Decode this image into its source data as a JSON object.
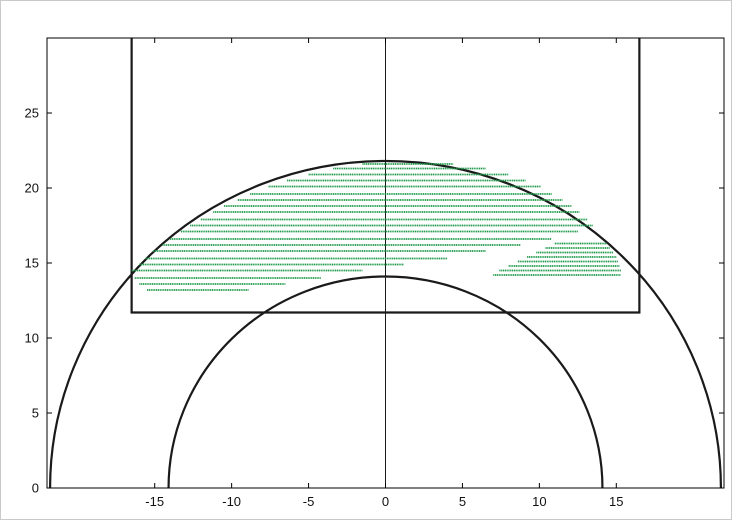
{
  "chart_data": {
    "type": "line",
    "title": "",
    "xlabel": "",
    "ylabel": "",
    "xlim": [
      -22,
      22
    ],
    "ylim": [
      0,
      30
    ],
    "grid": false,
    "x_ticks": [
      -15,
      -10,
      -5,
      0,
      5,
      10,
      15
    ],
    "x_tick_labels": [
      "-15",
      "-10",
      "-5",
      "0",
      "5",
      "10",
      "15"
    ],
    "y_ticks": [
      0,
      5,
      10,
      15,
      20,
      25
    ],
    "y_tick_labels": [
      "0",
      "5",
      "10",
      "15",
      "20",
      "25"
    ],
    "colors": {
      "axes": "#000000",
      "shapes": "#1a1a1a",
      "series": "#1e9a4a"
    },
    "court_lines": {
      "outer_arc_radius": 21.8,
      "inner_arc_radius": 14.1,
      "center_line_x": 0,
      "rectangle": {
        "x_min": -16.5,
        "x_max": 16.5,
        "y_min": 11.7,
        "y_max": 30
      }
    },
    "series": [
      {
        "values": [
          {
            "x1": -15.5,
            "x2": -8.9,
            "y": 13.2
          },
          {
            "x1": -16.0,
            "x2": -6.5,
            "y": 13.6
          },
          {
            "x1": -16.3,
            "x2": -4.2,
            "y": 14.0
          },
          {
            "x1": -16.5,
            "x2": -1.5,
            "y": 14.5
          },
          {
            "x1": -16.0,
            "x2": 1.2,
            "y": 14.9
          },
          {
            "x1": -15.6,
            "x2": 4.0,
            "y": 15.3
          },
          {
            "x1": -15.1,
            "x2": 6.5,
            "y": 15.8
          },
          {
            "x1": -14.5,
            "x2": 8.8,
            "y": 16.2
          },
          {
            "x1": -14.0,
            "x2": 10.8,
            "y": 16.6
          },
          {
            "x1": -13.3,
            "x2": 12.5,
            "y": 17.1
          },
          {
            "x1": -12.7,
            "x2": 13.5,
            "y": 17.5
          },
          {
            "x1": -12.0,
            "x2": 13.1,
            "y": 17.9
          },
          {
            "x1": -11.2,
            "x2": 12.6,
            "y": 18.4
          },
          {
            "x1": -10.5,
            "x2": 12.1,
            "y": 18.8
          },
          {
            "x1": -9.6,
            "x2": 11.5,
            "y": 19.2
          },
          {
            "x1": -8.8,
            "x2": 10.8,
            "y": 19.6
          },
          {
            "x1": -7.6,
            "x2": 10.1,
            "y": 20.1
          },
          {
            "x1": -6.4,
            "x2": 9.1,
            "y": 20.5
          },
          {
            "x1": -5.0,
            "x2": 8.0,
            "y": 20.9
          },
          {
            "x1": -3.4,
            "x2": 6.5,
            "y": 21.3
          },
          {
            "x1": -1.5,
            "x2": 4.4,
            "y": 21.6
          }
        ]
      },
      {
        "values": [
          {
            "x1": 7.0,
            "x2": 15.3,
            "y": 14.2
          },
          {
            "x1": 7.4,
            "x2": 15.3,
            "y": 14.5
          },
          {
            "x1": 8.0,
            "x2": 15.2,
            "y": 14.8
          },
          {
            "x1": 8.6,
            "x2": 15.1,
            "y": 15.1
          },
          {
            "x1": 9.2,
            "x2": 15.0,
            "y": 15.4
          },
          {
            "x1": 9.8,
            "x2": 14.8,
            "y": 15.7
          },
          {
            "x1": 10.4,
            "x2": 14.6,
            "y": 16.0
          },
          {
            "x1": 11.0,
            "x2": 14.4,
            "y": 16.3
          }
        ]
      }
    ]
  }
}
